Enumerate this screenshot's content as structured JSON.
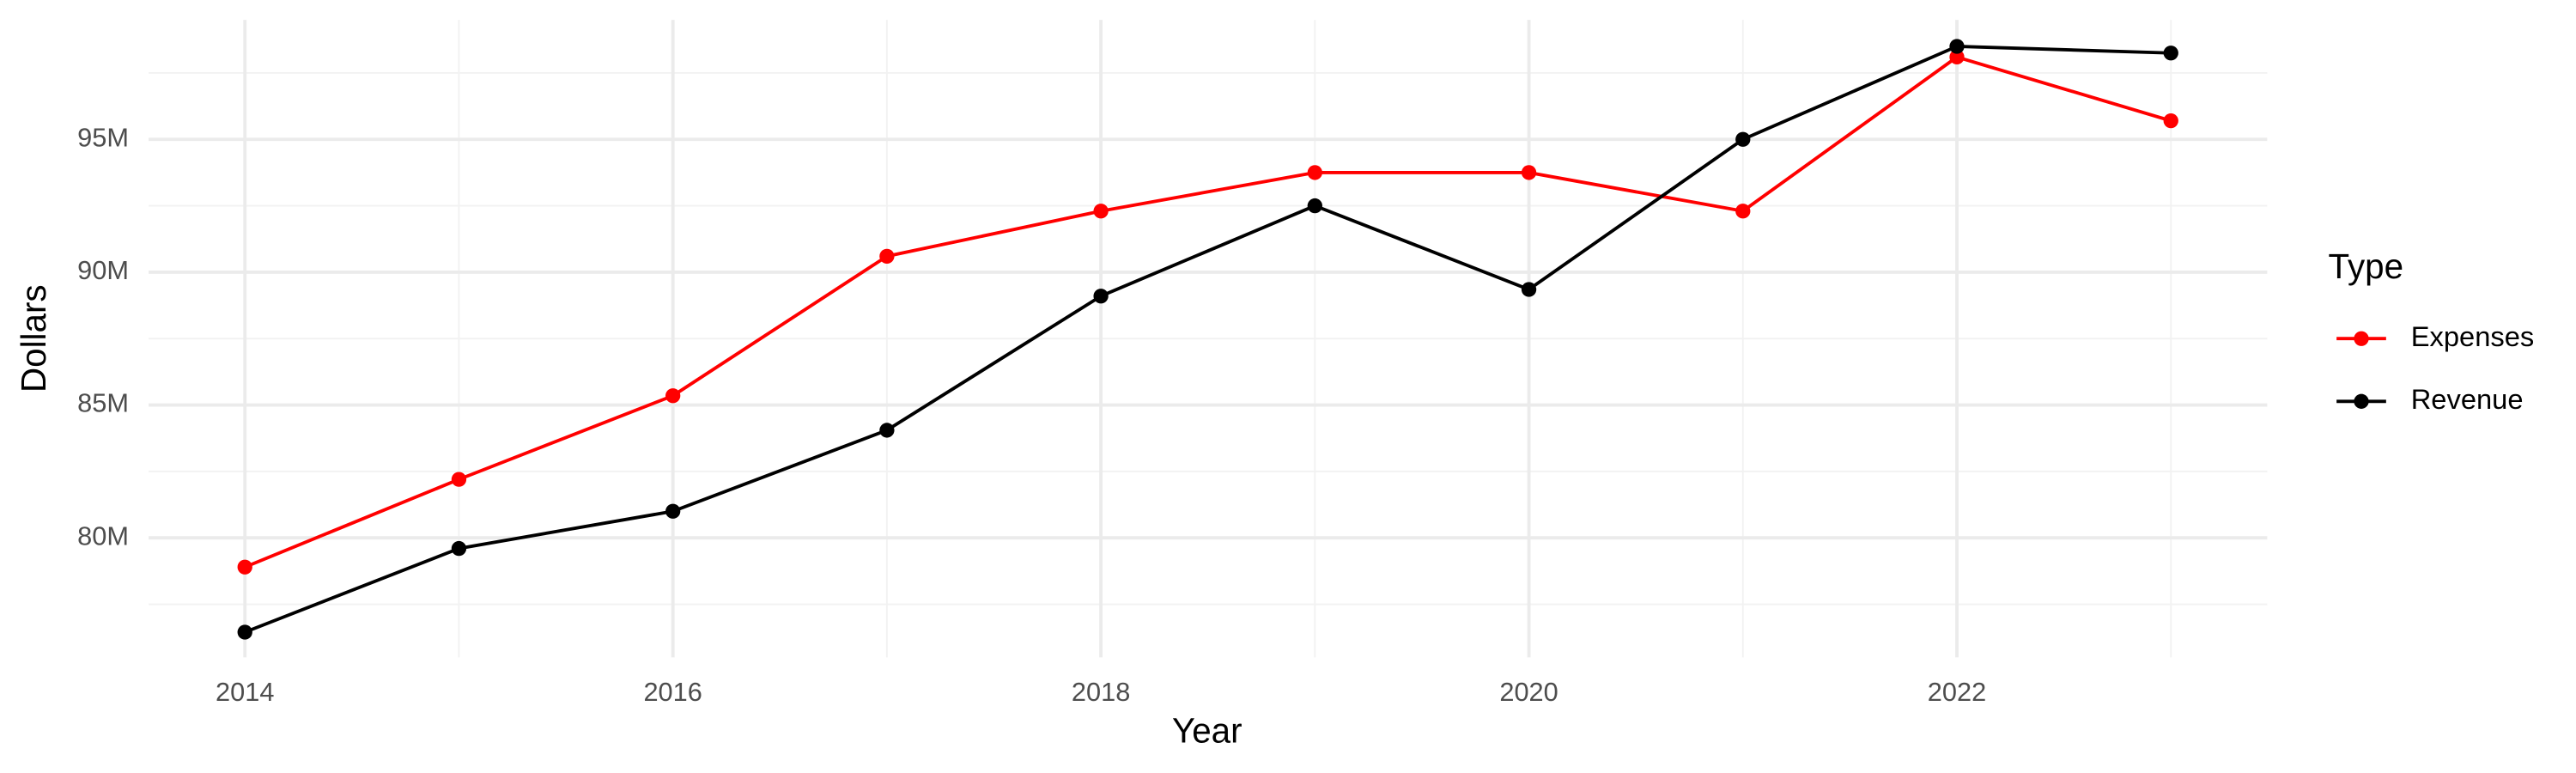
{
  "chart_data": {
    "type": "line",
    "x_label": "Year",
    "y_label": "Dollars",
    "legend_title": "Type",
    "x": [
      2014,
      2015,
      2016,
      2017,
      2018,
      2019,
      2020,
      2021,
      2022,
      2023
    ],
    "series": [
      {
        "name": "Expenses",
        "color": "#ff0000",
        "values": [
          78900000,
          82200000,
          85350000,
          90600000,
          92300000,
          93750000,
          93750000,
          92300000,
          98100000,
          95700000
        ]
      },
      {
        "name": "Revenue",
        "color": "#000000",
        "values": [
          76450000,
          79600000,
          81000000,
          84050000,
          89100000,
          92500000,
          89350000,
          95000000,
          98500000,
          98250000
        ]
      }
    ],
    "xlim": [
      2013.55,
      2023.45
    ],
    "xticks": [
      2014,
      2016,
      2018,
      2020,
      2022
    ],
    "ylim": [
      75500000,
      99500000
    ],
    "yticks": [
      {
        "value": 80000000,
        "label": "80M"
      },
      {
        "value": 85000000,
        "label": "85M"
      },
      {
        "value": 90000000,
        "label": "90M"
      },
      {
        "value": 95000000,
        "label": "95M"
      }
    ],
    "grid": true,
    "legend_position": "right"
  }
}
